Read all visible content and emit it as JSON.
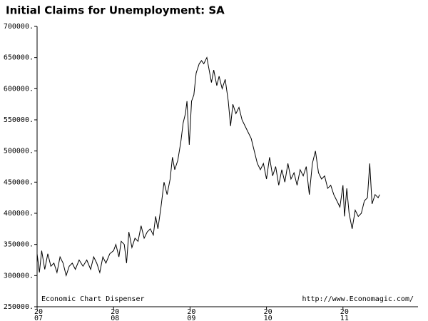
{
  "chart_data": {
    "type": "line",
    "title": "Initial Claims for Unemployment: SA",
    "annotations": [
      "Economic Chart Dispenser",
      "http://www.Economagic.com/"
    ],
    "xlim": [
      2007,
      2012
    ],
    "xticks": [
      {
        "value": 2007,
        "label": [
          "20",
          "07"
        ]
      },
      {
        "value": 2008,
        "label": [
          "20",
          "08"
        ]
      },
      {
        "value": 2009,
        "label": [
          "20",
          "09"
        ]
      },
      {
        "value": 2010,
        "label": [
          "20",
          "10"
        ]
      },
      {
        "value": 2011,
        "label": [
          "20",
          "11"
        ]
      }
    ],
    "ylim": [
      250000,
      700000
    ],
    "yticks": [
      {
        "value": 250000,
        "label": "250000."
      },
      {
        "value": 300000,
        "label": "300000."
      },
      {
        "value": 350000,
        "label": "350000."
      },
      {
        "value": 400000,
        "label": "400000."
      },
      {
        "value": 450000,
        "label": "450000."
      },
      {
        "value": 500000,
        "label": "500000."
      },
      {
        "value": 550000,
        "label": "550000."
      },
      {
        "value": 600000,
        "label": "600000."
      },
      {
        "value": 650000,
        "label": "650000."
      },
      {
        "value": 700000,
        "label": "700000."
      }
    ],
    "color": "#000000",
    "x": [
      2007.0,
      2007.03,
      2007.06,
      2007.1,
      2007.14,
      2007.18,
      2007.22,
      2007.26,
      2007.3,
      2007.34,
      2007.38,
      2007.42,
      2007.46,
      2007.5,
      2007.55,
      2007.6,
      2007.65,
      2007.7,
      2007.74,
      2007.78,
      2007.82,
      2007.86,
      2007.9,
      2007.95,
      2008.0,
      2008.03,
      2008.07,
      2008.1,
      2008.14,
      2008.17,
      2008.2,
      2008.24,
      2008.28,
      2008.32,
      2008.36,
      2008.4,
      2008.44,
      2008.48,
      2008.52,
      2008.55,
      2008.58,
      2008.62,
      2008.66,
      2008.7,
      2008.74,
      2008.77,
      2008.8,
      2008.84,
      2008.88,
      2008.91,
      2008.94,
      2008.96,
      2008.99,
      2009.02,
      2009.05,
      2009.08,
      2009.12,
      2009.15,
      2009.18,
      2009.22,
      2009.25,
      2009.28,
      2009.31,
      2009.35,
      2009.38,
      2009.42,
      2009.46,
      2009.5,
      2009.53,
      2009.56,
      2009.6,
      2009.64,
      2009.68,
      2009.72,
      2009.76,
      2009.8,
      2009.84,
      2009.88,
      2009.92,
      2009.96,
      2010.0,
      2010.04,
      2010.08,
      2010.12,
      2010.16,
      2010.2,
      2010.24,
      2010.28,
      2010.32,
      2010.36,
      2010.4,
      2010.44,
      2010.48,
      2010.52,
      2010.56,
      2010.6,
      2010.64,
      2010.68,
      2010.72,
      2010.76,
      2010.8,
      2010.84,
      2010.88,
      2010.92,
      2010.96,
      2011.0,
      2011.02,
      2011.05,
      2011.08,
      2011.12,
      2011.16,
      2011.2,
      2011.24,
      2011.28,
      2011.32,
      2011.35,
      2011.38,
      2011.42,
      2011.46,
      2011.48
    ],
    "values": [
      335000,
      305000,
      340000,
      310000,
      335000,
      315000,
      320000,
      305000,
      330000,
      320000,
      300000,
      315000,
      320000,
      310000,
      325000,
      315000,
      325000,
      310000,
      330000,
      320000,
      305000,
      330000,
      320000,
      335000,
      340000,
      350000,
      330000,
      355000,
      350000,
      320000,
      370000,
      345000,
      360000,
      355000,
      380000,
      360000,
      370000,
      375000,
      365000,
      395000,
      375000,
      410000,
      450000,
      430000,
      455000,
      490000,
      470000,
      485000,
      515000,
      545000,
      560000,
      580000,
      510000,
      580000,
      590000,
      625000,
      640000,
      645000,
      640000,
      650000,
      630000,
      610000,
      630000,
      605000,
      620000,
      600000,
      615000,
      580000,
      540000,
      575000,
      560000,
      570000,
      550000,
      540000,
      530000,
      520000,
      500000,
      480000,
      470000,
      480000,
      455000,
      490000,
      460000,
      475000,
      445000,
      470000,
      450000,
      480000,
      455000,
      465000,
      445000,
      470000,
      460000,
      475000,
      430000,
      480000,
      500000,
      465000,
      455000,
      460000,
      440000,
      445000,
      430000,
      420000,
      410000,
      445000,
      395000,
      440000,
      400000,
      375000,
      405000,
      395000,
      400000,
      420000,
      425000,
      480000,
      415000,
      430000,
      425000,
      430000
    ]
  }
}
